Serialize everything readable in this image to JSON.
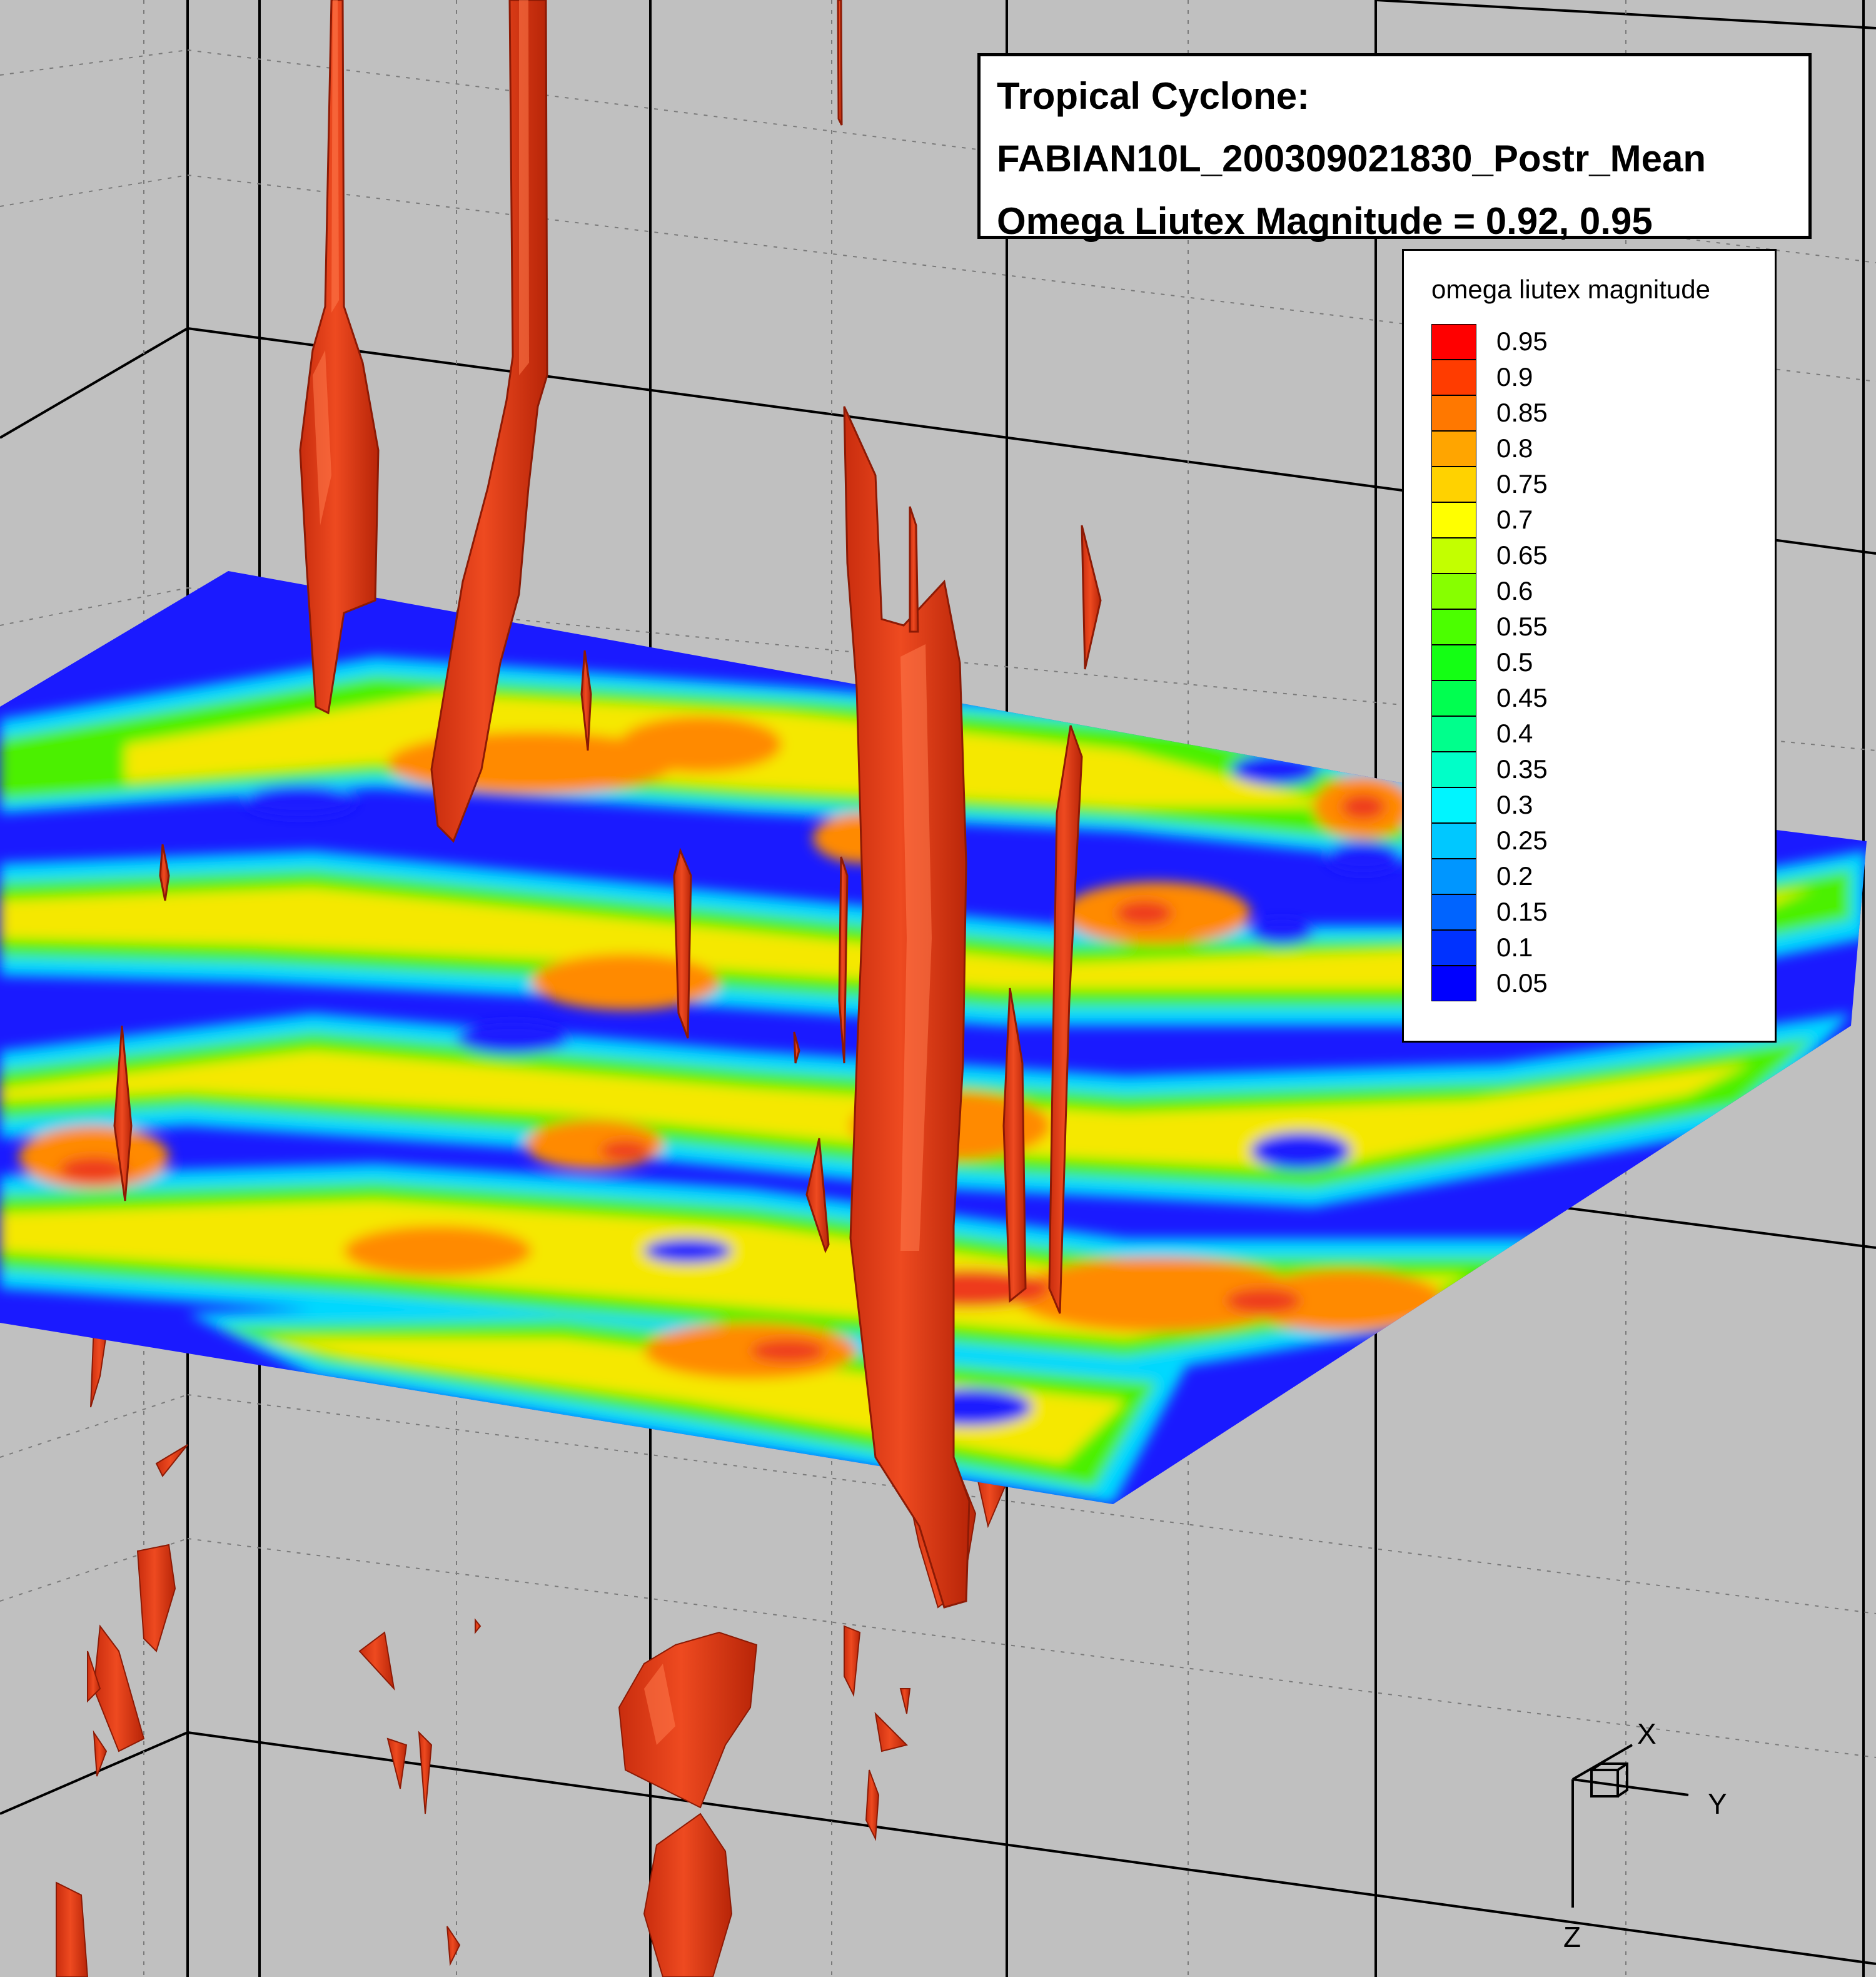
{
  "title_lines": [
    "Tropical Cyclone:",
    "FABIAN10L_200309021830_Postr_Mean",
    "Omega Liutex Magnitude = 0.92, 0.95"
  ],
  "legend": {
    "title": "omega liutex magnitude",
    "levels": [
      {
        "label": "0.95",
        "color": "#ff0000"
      },
      {
        "label": "0.9",
        "color": "#ff3c00"
      },
      {
        "label": "0.85",
        "color": "#ff7800"
      },
      {
        "label": "0.8",
        "color": "#ffa500"
      },
      {
        "label": "0.75",
        "color": "#ffd200"
      },
      {
        "label": "0.7",
        "color": "#ffff00"
      },
      {
        "label": "0.65",
        "color": "#c3ff00"
      },
      {
        "label": "0.6",
        "color": "#87ff00"
      },
      {
        "label": "0.55",
        "color": "#4bff00"
      },
      {
        "label": "0.5",
        "color": "#14ff14"
      },
      {
        "label": "0.45",
        "color": "#00ff50"
      },
      {
        "label": "0.4",
        "color": "#00ff8c"
      },
      {
        "label": "0.35",
        "color": "#00ffc8"
      },
      {
        "label": "0.3",
        "color": "#00f5ff"
      },
      {
        "label": "0.25",
        "color": "#00c8ff"
      },
      {
        "label": "0.2",
        "color": "#0096ff"
      },
      {
        "label": "0.15",
        "color": "#0064ff"
      },
      {
        "label": "0.1",
        "color": "#0032ff"
      },
      {
        "label": "0.05",
        "color": "#0000ff"
      }
    ]
  },
  "axes": {
    "x": "X",
    "y": "Y",
    "z": "Z"
  },
  "colors": {
    "background": "#c0c0c0",
    "isosurface": "#e8401c",
    "isosurface_highlight": "#ff6a3d",
    "plane_low": "#1a1aff"
  }
}
